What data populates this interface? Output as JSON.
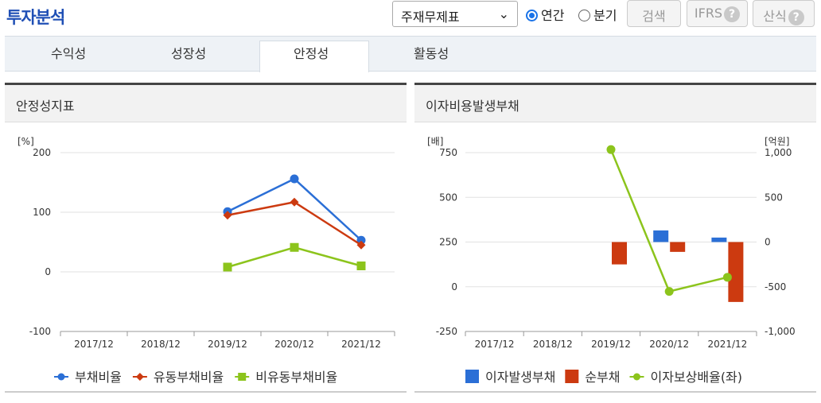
{
  "header": {
    "title": "투자분석",
    "select_value": "주재무제표",
    "radio_annual": "연간",
    "radio_quarter": "분기",
    "search_label": "검색",
    "ifrs_label": "IFRS",
    "calc_label": "산식",
    "help_glyph": "?"
  },
  "tabs": [
    {
      "label": "수익성"
    },
    {
      "label": "성장성"
    },
    {
      "label": "안정성"
    },
    {
      "label": "활동성"
    }
  ],
  "colors": {
    "blue": "#2b6fd6",
    "red": "#cc3a10",
    "green": "#8cc41c"
  },
  "chart_data": [
    {
      "type": "line",
      "title": "안정성지표",
      "yunit": "[%]",
      "ylim": [
        -100,
        200
      ],
      "yticks": [
        "200",
        "100",
        "0",
        "-100"
      ],
      "categories": [
        "2017/12",
        "2018/12",
        "2019/12",
        "2020/12",
        "2021/12"
      ],
      "legend_position": "bottom",
      "series": [
        {
          "name": "부채비율",
          "color": "#2b6fd6",
          "marker": "circle",
          "values": [
            null,
            null,
            101,
            156,
            53
          ]
        },
        {
          "name": "유동부채비율",
          "color": "#cc3a10",
          "marker": "diamond",
          "values": [
            null,
            null,
            95,
            117,
            45
          ]
        },
        {
          "name": "비유동부채비율",
          "color": "#8cc41c",
          "marker": "square",
          "values": [
            null,
            null,
            8,
            41,
            10
          ]
        }
      ]
    },
    {
      "type": "bar",
      "title": "이자비용발생부채",
      "yunit_left": "[배]",
      "yunit_right": "[억원]",
      "ylim_left": [
        -250,
        750
      ],
      "ylim_right": [
        -1000,
        1000
      ],
      "yticks_left": [
        "750",
        "500",
        "250",
        "0",
        "-250"
      ],
      "yticks_right": [
        "1,000",
        "500",
        "0",
        "-500",
        "-1,000"
      ],
      "categories": [
        "2017/12",
        "2018/12",
        "2019/12",
        "2020/12",
        "2021/12"
      ],
      "legend_position": "bottom",
      "series": [
        {
          "name": "이자발생부채",
          "kind": "bar",
          "axis": "right",
          "color": "#2b6fd6",
          "marker": "square",
          "values": [
            null,
            null,
            null,
            130,
            50
          ]
        },
        {
          "name": "순부채",
          "kind": "bar",
          "axis": "right",
          "color": "#cc3a10",
          "marker": "square",
          "values": [
            null,
            null,
            -250,
            -110,
            -670
          ]
        },
        {
          "name": "이자보상배율(좌)",
          "kind": "line",
          "axis": "left",
          "color": "#8cc41c",
          "marker": "circle",
          "values": [
            null,
            null,
            767,
            -26,
            53
          ]
        }
      ]
    }
  ]
}
